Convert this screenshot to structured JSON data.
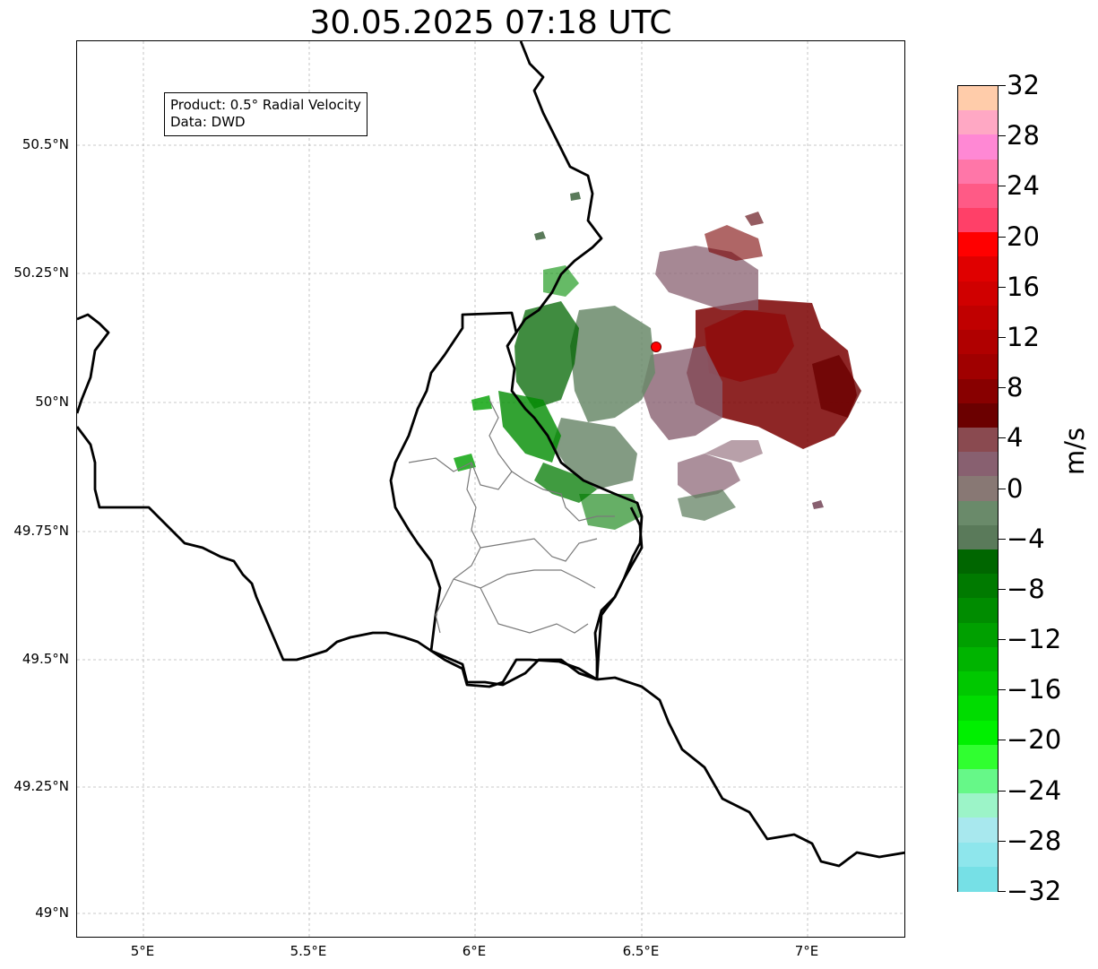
{
  "title": "30.05.2025 07:18 UTC",
  "info": {
    "product": "Product: 0.5° Radial Velocity",
    "data": "Data: DWD"
  },
  "axes": {
    "lat_ticks": [
      "50.5°N",
      "50.25°N",
      "50°N",
      "49.75°N",
      "49.5°N",
      "49.25°N",
      "49°N"
    ],
    "lon_ticks": [
      "5°E",
      "5.5°E",
      "6°E",
      "6.5°E",
      "7°E"
    ],
    "lon_range": [
      4.8,
      7.3
    ],
    "lat_range": [
      48.95,
      50.7
    ]
  },
  "radar_site": {
    "lon": 6.55,
    "lat": 50.11,
    "marker_color": "#ff0000"
  },
  "colorbar": {
    "unit": "m/s",
    "min": -32,
    "max": 32,
    "labels": [
      "32",
      "28",
      "24",
      "20",
      "16",
      "12",
      "8",
      "4",
      "0",
      "−4",
      "−8",
      "−12",
      "−16",
      "−20",
      "−24",
      "−28",
      "−32"
    ],
    "colors_top_to_bottom": [
      "#ffccaa",
      "#ffa8c4",
      "#ff88d4",
      "#ff76a8",
      "#ff5a86",
      "#ff4068",
      "#ff0000",
      "#e00000",
      "#d00000",
      "#c00000",
      "#b00000",
      "#a00000",
      "#880000",
      "#6b0000",
      "#8a4a50",
      "#886070",
      "#887874",
      "#6a8a6a",
      "#5a7a5a",
      "#006600",
      "#007a00",
      "#008c00",
      "#00a000",
      "#00b400",
      "#00c800",
      "#00dc00",
      "#00f000",
      "#30ff30",
      "#66f888",
      "#9cf4c8",
      "#a8e8ee",
      "#8ee6ec",
      "#76e0e6"
    ]
  }
}
